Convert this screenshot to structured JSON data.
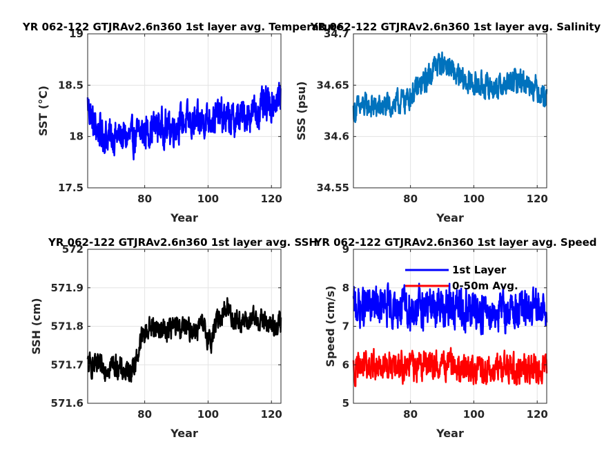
{
  "chart_data": [
    {
      "type": "line",
      "title": "YR 062-122 GTJRAv2.6n360 1st layer avg. Temperature",
      "xlabel": "Year",
      "ylabel": "SST (°C)",
      "xlim": [
        62,
        123
      ],
      "ylim": [
        17.5,
        19
      ],
      "xticks": [
        "80",
        "100",
        "120"
      ],
      "yticks": [
        "17.5",
        "18",
        "18.5",
        "19"
      ],
      "grid": true,
      "series": [
        {
          "color": "#0000ff",
          "trend": [
            [
              62,
              18.32
            ],
            [
              64,
              18.1
            ],
            [
              68,
              18.0
            ],
            [
              72,
              18.0
            ],
            [
              76,
              17.98
            ],
            [
              80,
              18.05
            ],
            [
              84,
              18.1
            ],
            [
              88,
              18.08
            ],
            [
              92,
              18.15
            ],
            [
              96,
              18.12
            ],
            [
              100,
              18.18
            ],
            [
              104,
              18.2
            ],
            [
              108,
              18.15
            ],
            [
              112,
              18.22
            ],
            [
              116,
              18.25
            ],
            [
              120,
              18.32
            ],
            [
              123,
              18.38
            ]
          ],
          "amplitude": 0.2
        }
      ]
    },
    {
      "type": "line",
      "title": "YR 062-122 GTJRAv2.6n360 1st layer avg. Salinity",
      "xlabel": "Year",
      "ylabel": "SSS (psu)",
      "xlim": [
        62,
        123
      ],
      "ylim": [
        34.55,
        34.7
      ],
      "xticks": [
        "80",
        "100",
        "120"
      ],
      "yticks": [
        "34.55",
        "34.6",
        "34.65",
        "34.7"
      ],
      "grid": true,
      "series": [
        {
          "color": "#0072bd",
          "trend": [
            [
              62,
              34.625
            ],
            [
              66,
              34.63
            ],
            [
              70,
              34.628
            ],
            [
              74,
              34.63
            ],
            [
              78,
              34.635
            ],
            [
              82,
              34.645
            ],
            [
              85,
              34.655
            ],
            [
              88,
              34.67
            ],
            [
              91,
              34.672
            ],
            [
              94,
              34.66
            ],
            [
              96,
              34.655
            ],
            [
              98,
              34.652
            ],
            [
              102,
              34.65
            ],
            [
              106,
              34.648
            ],
            [
              110,
              34.65
            ],
            [
              114,
              34.655
            ],
            [
              118,
              34.652
            ],
            [
              123,
              34.638
            ]
          ],
          "amplitude": 0.014
        }
      ]
    },
    {
      "type": "line",
      "title": "YR 062-122 GTJRAv2.6n360 1st layer avg. SSH",
      "xlabel": "Year",
      "ylabel": "SSH (cm)",
      "xlim": [
        62,
        123
      ],
      "ylim": [
        571.6,
        572
      ],
      "xticks": [
        "80",
        "100",
        "120"
      ],
      "yticks": [
        "571.6",
        "571.7",
        "571.8",
        "571.9",
        "572"
      ],
      "grid": true,
      "series": [
        {
          "color": "#000000",
          "trend": [
            [
              62,
              571.7
            ],
            [
              66,
              571.69
            ],
            [
              70,
              571.7
            ],
            [
              74,
              571.68
            ],
            [
              77,
              571.7
            ],
            [
              79,
              571.77
            ],
            [
              82,
              571.8
            ],
            [
              86,
              571.79
            ],
            [
              90,
              571.8
            ],
            [
              94,
              571.79
            ],
            [
              98,
              571.8
            ],
            [
              101,
              571.76
            ],
            [
              103,
              571.82
            ],
            [
              106,
              571.85
            ],
            [
              108,
              571.82
            ],
            [
              112,
              571.81
            ],
            [
              116,
              571.82
            ],
            [
              120,
              571.8
            ],
            [
              123,
              571.81
            ]
          ],
          "amplitude": 0.035
        }
      ]
    },
    {
      "type": "line",
      "title": "YR 062-122 GTJRAv2.6n360 1st layer avg. Speed",
      "xlabel": "Year",
      "ylabel": "Speed (cm/s)",
      "xlim": [
        62,
        123
      ],
      "ylim": [
        5,
        9
      ],
      "xticks": [
        "80",
        "100",
        "120"
      ],
      "yticks": [
        "5",
        "6",
        "7",
        "8",
        "9"
      ],
      "grid": true,
      "legend": {
        "position": "top",
        "entries": [
          "1st Layer",
          "0-50m Avg."
        ]
      },
      "series": [
        {
          "name": "1st Layer",
          "color": "#0000ff",
          "trend": [
            [
              62,
              7.5
            ],
            [
              70,
              7.5
            ],
            [
              80,
              7.45
            ],
            [
              90,
              7.5
            ],
            [
              100,
              7.4
            ],
            [
              110,
              7.4
            ],
            [
              120,
              7.4
            ],
            [
              123,
              7.45
            ]
          ],
          "amplitude": 0.6
        },
        {
          "name": "0-50m Avg.",
          "color": "#ff0000",
          "trend": [
            [
              62,
              5.9
            ],
            [
              70,
              6.0
            ],
            [
              80,
              5.95
            ],
            [
              90,
              6.0
            ],
            [
              100,
              5.85
            ],
            [
              110,
              5.9
            ],
            [
              120,
              5.9
            ],
            [
              123,
              5.85
            ]
          ],
          "amplitude": 0.45
        }
      ]
    }
  ]
}
